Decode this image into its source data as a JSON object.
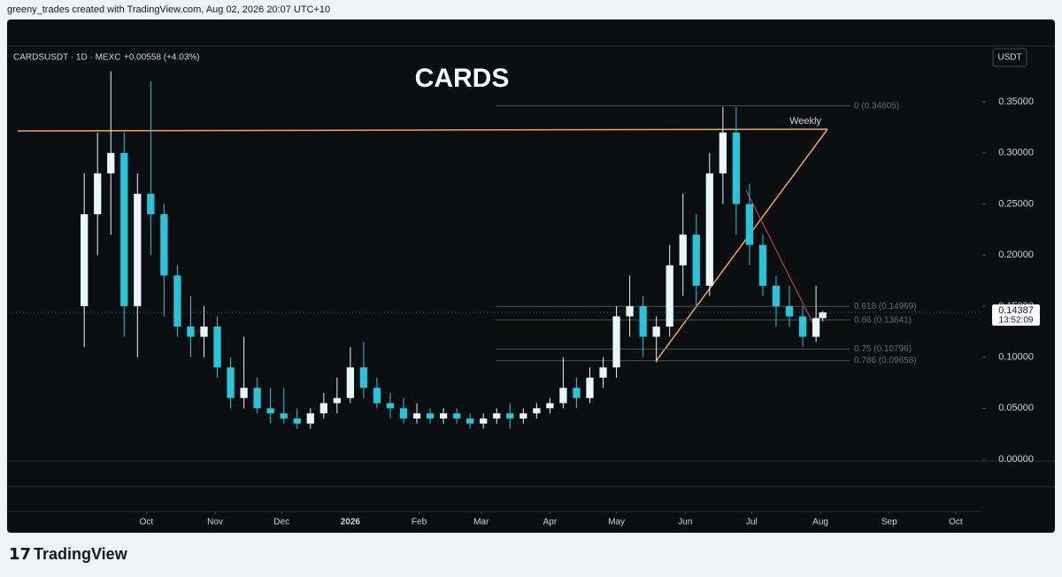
{
  "header": {
    "attribution": "greeny_trades created with TradingView.com, Aug 02, 2026 20:07 UTC+10"
  },
  "footer": {
    "brand": "TradingView"
  },
  "chart_data": {
    "type": "candlestick",
    "title": "CARDS",
    "symbol": "CARDSUSDT · 1D · MEXC",
    "change": "+0.00558 (+4.03%)",
    "currency": "USDT",
    "up_color": "#e8f7fa",
    "down_color": "#26c6da",
    "x": [
      "2025-09-03",
      "2025-09-09",
      "2025-09-15",
      "2025-09-21",
      "2025-09-27",
      "2025-10-03",
      "2025-10-09",
      "2025-10-15",
      "2025-10-21",
      "2025-10-27",
      "2025-11-02",
      "2025-11-08",
      "2025-11-14",
      "2025-11-20",
      "2025-11-26",
      "2025-12-02",
      "2025-12-08",
      "2025-12-14",
      "2025-12-20",
      "2025-12-26",
      "2026-01-01",
      "2026-01-07",
      "2026-01-13",
      "2026-01-19",
      "2026-01-25",
      "2026-01-31",
      "2026-02-06",
      "2026-02-12",
      "2026-02-18",
      "2026-02-24",
      "2026-03-02",
      "2026-03-08",
      "2026-03-14",
      "2026-03-20",
      "2026-03-26",
      "2026-04-01",
      "2026-04-07",
      "2026-04-13",
      "2026-04-19",
      "2026-04-25",
      "2026-05-01",
      "2026-05-07",
      "2026-05-13",
      "2026-05-19",
      "2026-05-25",
      "2026-05-31",
      "2026-06-06",
      "2026-06-12",
      "2026-06-18",
      "2026-06-24",
      "2026-06-30",
      "2026-07-06",
      "2026-07-12",
      "2026-07-18",
      "2026-07-24",
      "2026-07-30",
      "2026-08-02"
    ],
    "open": [
      0.15,
      0.24,
      0.28,
      0.3,
      0.15,
      0.26,
      0.24,
      0.18,
      0.13,
      0.12,
      0.13,
      0.09,
      0.06,
      0.07,
      0.05,
      0.045,
      0.04,
      0.035,
      0.045,
      0.055,
      0.06,
      0.09,
      0.07,
      0.055,
      0.05,
      0.04,
      0.045,
      0.04,
      0.045,
      0.04,
      0.035,
      0.04,
      0.045,
      0.04,
      0.045,
      0.05,
      0.055,
      0.07,
      0.06,
      0.08,
      0.09,
      0.14,
      0.15,
      0.12,
      0.13,
      0.19,
      0.22,
      0.17,
      0.28,
      0.32,
      0.25,
      0.21,
      0.17,
      0.15,
      0.14,
      0.12,
      0.13829
    ],
    "high": [
      0.28,
      0.32,
      0.38,
      0.32,
      0.28,
      0.37,
      0.25,
      0.19,
      0.16,
      0.15,
      0.14,
      0.1,
      0.12,
      0.08,
      0.07,
      0.07,
      0.05,
      0.05,
      0.065,
      0.08,
      0.11,
      0.115,
      0.08,
      0.065,
      0.06,
      0.055,
      0.05,
      0.05,
      0.05,
      0.045,
      0.045,
      0.05,
      0.055,
      0.05,
      0.055,
      0.06,
      0.1,
      0.08,
      0.09,
      0.1,
      0.15,
      0.18,
      0.16,
      0.14,
      0.21,
      0.26,
      0.24,
      0.3,
      0.345,
      0.345,
      0.27,
      0.22,
      0.18,
      0.17,
      0.15,
      0.17,
      0.145
    ],
    "low": [
      0.11,
      0.2,
      0.22,
      0.12,
      0.1,
      0.2,
      0.14,
      0.12,
      0.1,
      0.1,
      0.08,
      0.05,
      0.05,
      0.045,
      0.035,
      0.035,
      0.03,
      0.03,
      0.04,
      0.045,
      0.055,
      0.06,
      0.05,
      0.04,
      0.035,
      0.035,
      0.035,
      0.035,
      0.035,
      0.03,
      0.03,
      0.035,
      0.03,
      0.035,
      0.04,
      0.045,
      0.05,
      0.05,
      0.055,
      0.07,
      0.08,
      0.12,
      0.1,
      0.095,
      0.12,
      0.16,
      0.15,
      0.16,
      0.25,
      0.22,
      0.19,
      0.16,
      0.13,
      0.13,
      0.11,
      0.115,
      0.135
    ],
    "close": [
      0.24,
      0.28,
      0.3,
      0.15,
      0.26,
      0.24,
      0.18,
      0.13,
      0.12,
      0.13,
      0.09,
      0.06,
      0.07,
      0.05,
      0.045,
      0.04,
      0.035,
      0.045,
      0.055,
      0.06,
      0.09,
      0.07,
      0.055,
      0.05,
      0.04,
      0.045,
      0.04,
      0.045,
      0.04,
      0.035,
      0.04,
      0.045,
      0.04,
      0.045,
      0.05,
      0.055,
      0.07,
      0.06,
      0.08,
      0.09,
      0.14,
      0.15,
      0.12,
      0.13,
      0.19,
      0.22,
      0.17,
      0.28,
      0.32,
      0.25,
      0.21,
      0.17,
      0.15,
      0.14,
      0.12,
      0.13829,
      0.14387
    ],
    "last_price": 0.14387,
    "countdown": "13:52:09",
    "xlim": [
      "2025-07-31",
      "2026-10-13"
    ],
    "xticks": [
      {
        "value": "2025-10-01",
        "label": "Oct"
      },
      {
        "value": "2025-11-01",
        "label": "Nov"
      },
      {
        "value": "2025-12-01",
        "label": "Dec"
      },
      {
        "value": "2026-01-01",
        "label": "2026"
      },
      {
        "value": "2026-02-01",
        "label": "Feb"
      },
      {
        "value": "2026-03-01",
        "label": "Mar"
      },
      {
        "value": "2026-04-01",
        "label": "Apr"
      },
      {
        "value": "2026-05-01",
        "label": "May"
      },
      {
        "value": "2026-06-01",
        "label": "Jun"
      },
      {
        "value": "2026-07-01",
        "label": "Jul"
      },
      {
        "value": "2026-08-01",
        "label": "Aug"
      },
      {
        "value": "2026-09-01",
        "label": "Sep"
      },
      {
        "value": "2026-10-01",
        "label": "Oct"
      }
    ],
    "ylim": [
      -0.0017,
      0.4047
    ],
    "yticks": [
      {
        "value": 0,
        "label": "0.00000"
      },
      {
        "value": 0.05,
        "label": "0.05000"
      },
      {
        "value": 0.1,
        "label": "0.10000"
      },
      {
        "value": 0.15,
        "label": "0.15000"
      },
      {
        "value": 0.2,
        "label": "0.20000"
      },
      {
        "value": 0.25,
        "label": "0.25000"
      },
      {
        "value": 0.3,
        "label": "0.30000"
      },
      {
        "value": 0.35,
        "label": "0.35000"
      }
    ],
    "fib_levels": [
      {
        "value": 0.34605,
        "label": "0 (0.34605)"
      },
      {
        "value": 0.14969,
        "label": "0.618 (0.14969)"
      },
      {
        "value": 0.13641,
        "label": "0.66 (0.13641)"
      },
      {
        "value": 0.10796,
        "label": "0.75 (0.10796)"
      },
      {
        "value": 0.09658,
        "label": "0.786 (0.09658)"
      }
    ],
    "annotation": "Weekly"
  }
}
